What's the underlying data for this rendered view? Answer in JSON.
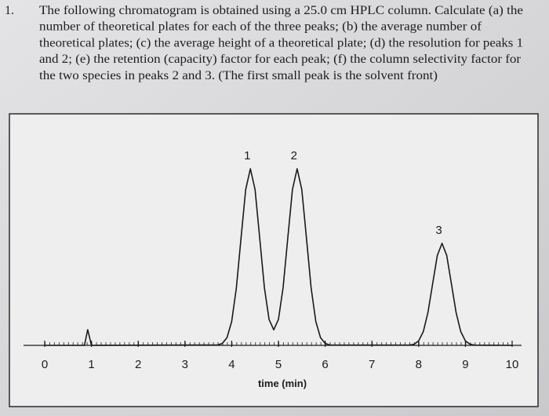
{
  "question": {
    "number": "1.",
    "lines": [
      "The following chromatogram is obtained using a 25.0 cm HPLC column.  Calculate (a) the",
      "number of theoretical plates for each of the three peaks;  (b) the average number of",
      "theoretical plates; (c) the average height of a theoretical plate; (d) the resolution for peaks 1",
      "and 2; (e) the retention (capacity) factor for each peak; (f) the column selectivity factor for",
      "the two species in peaks 2 and 3.  (The first small peak is the solvent front)"
    ]
  },
  "chart_data": {
    "type": "line",
    "xlabel": "time (min)",
    "color": "#1a1a1a",
    "x": [
      0,
      0.85,
      0.92,
      1.0,
      3.7,
      3.8,
      3.9,
      4.0,
      4.1,
      4.2,
      4.3,
      4.4,
      4.5,
      4.6,
      4.7,
      4.8,
      4.9,
      5.0,
      5.1,
      5.2,
      5.3,
      5.4,
      5.5,
      5.6,
      5.7,
      5.8,
      5.9,
      6.0,
      6.1,
      7.8,
      7.9,
      8.0,
      8.1,
      8.2,
      8.3,
      8.4,
      8.5,
      8.6,
      8.7,
      8.8,
      8.9,
      9.0,
      9.1,
      9.2,
      10
    ],
    "values": [
      0,
      0,
      20,
      0,
      0.5,
      2.5,
      9.9,
      30.4,
      73.0,
      136.5,
      198.6,
      225,
      198.6,
      136.6,
      73.5,
      32.9,
      19.8,
      32.9,
      73.5,
      136.6,
      198.6,
      225,
      198.6,
      136.5,
      73.0,
      30.4,
      9.9,
      2.5,
      0.5,
      0.3,
      1.4,
      5.7,
      17.6,
      42.2,
      78.8,
      114.7,
      130,
      114.7,
      78.8,
      42.2,
      17.6,
      5.7,
      1.4,
      0.3,
      0
    ],
    "xlim": [
      0,
      10
    ],
    "ylim": [
      0,
      250
    ],
    "xticks": [
      0,
      1,
      2,
      3,
      4,
      5,
      6,
      7,
      8,
      9,
      10
    ],
    "annotations": [
      {
        "text": "1",
        "x": 4.4,
        "y": 225
      },
      {
        "text": "2",
        "x": 5.4,
        "y": 225
      },
      {
        "text": "3",
        "x": 8.5,
        "y": 130
      }
    ]
  }
}
